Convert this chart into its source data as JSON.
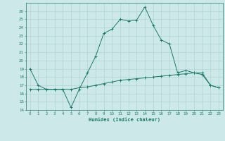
{
  "xlabel": "Humidex (Indice chaleur)",
  "x": [
    0,
    1,
    2,
    3,
    4,
    5,
    6,
    7,
    8,
    9,
    10,
    11,
    12,
    13,
    14,
    15,
    16,
    17,
    18,
    19,
    20,
    21,
    22,
    23
  ],
  "line1_y": [
    19,
    17,
    16.5,
    16.5,
    16.5,
    14.3,
    16.5,
    18.5,
    20.5,
    23.3,
    23.8,
    25.0,
    24.8,
    24.9,
    26.5,
    24.3,
    22.5,
    22.0,
    18.5,
    18.8,
    18.5,
    18.3,
    17.0,
    16.7
  ],
  "line2_y": [
    16.5,
    16.5,
    16.5,
    16.5,
    16.5,
    16.5,
    16.7,
    16.8,
    17.0,
    17.2,
    17.4,
    17.6,
    17.7,
    17.8,
    17.9,
    18.0,
    18.1,
    18.2,
    18.3,
    18.4,
    18.5,
    18.5,
    17.0,
    16.7
  ],
  "ylim": [
    14,
    27
  ],
  "xlim": [
    -0.5,
    23.5
  ],
  "yticks": [
    14,
    15,
    16,
    17,
    18,
    19,
    20,
    21,
    22,
    23,
    24,
    25,
    26
  ],
  "xticks": [
    0,
    1,
    2,
    3,
    4,
    5,
    6,
    7,
    8,
    9,
    10,
    11,
    12,
    13,
    14,
    15,
    16,
    17,
    18,
    19,
    20,
    21,
    22,
    23
  ],
  "line_color": "#1a7a6a",
  "bg_color": "#cce8e8",
  "grid_color": "#aacfcf",
  "title_color": "#1a7a6a"
}
